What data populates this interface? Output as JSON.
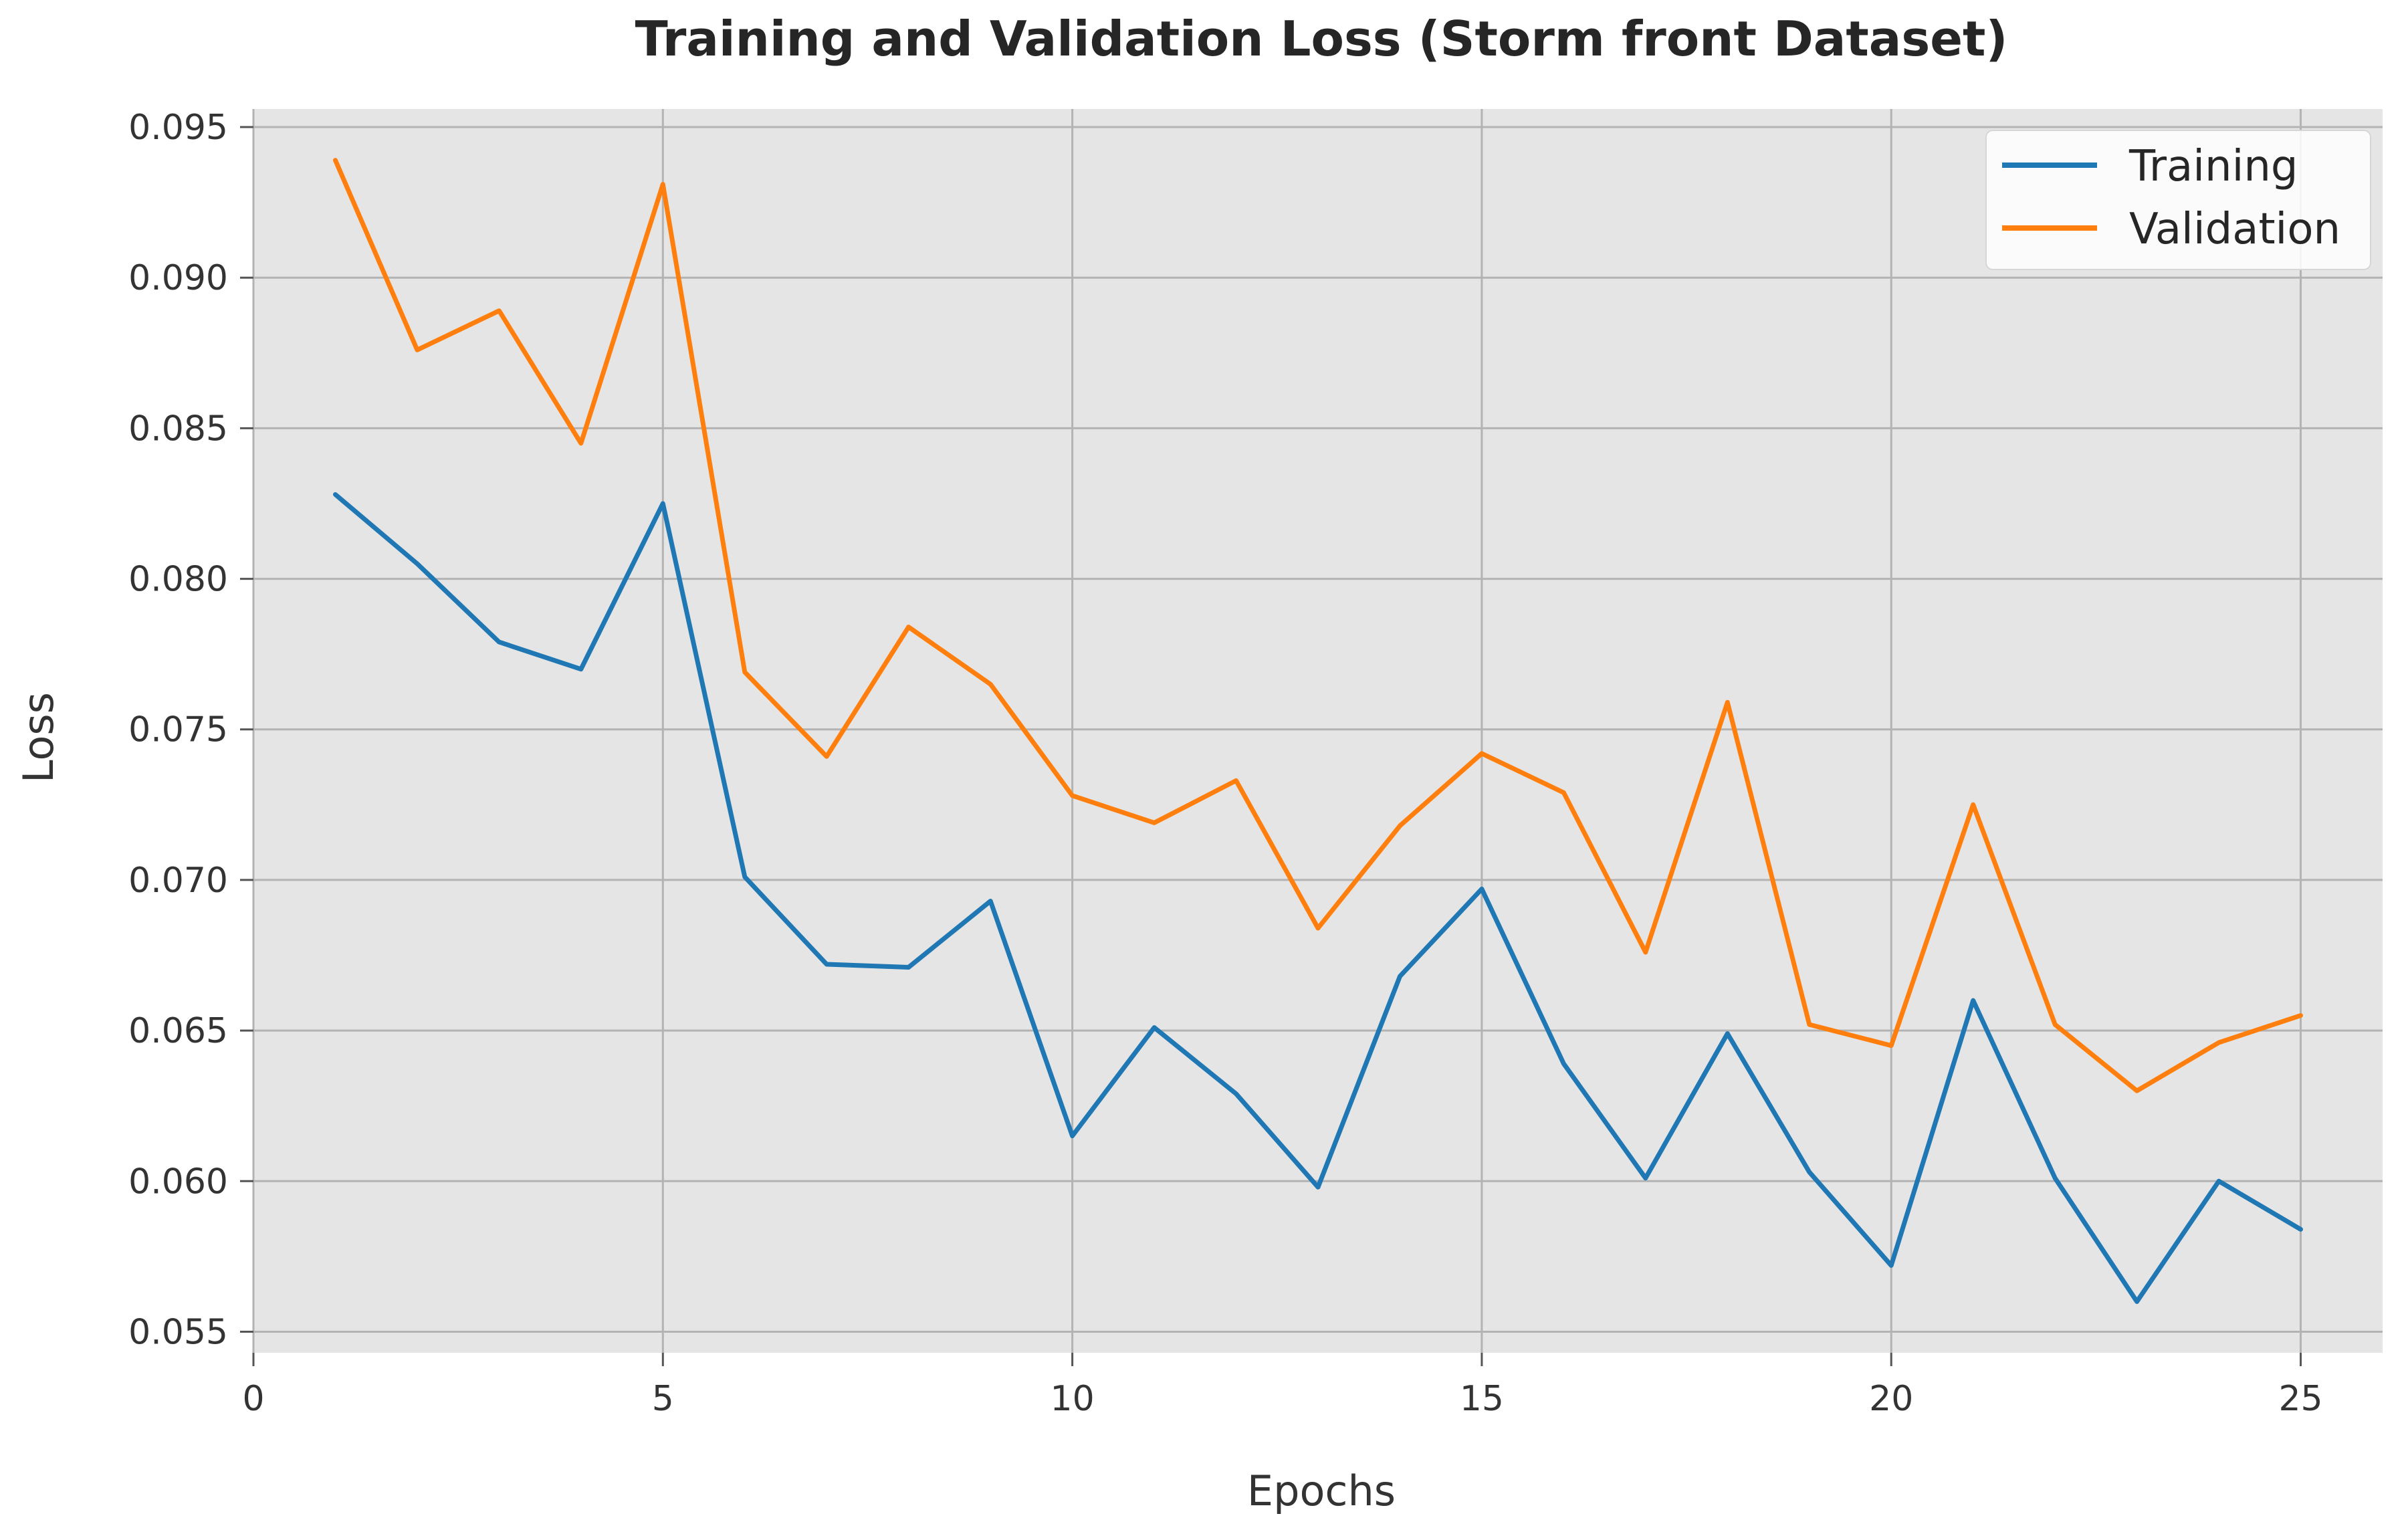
{
  "chart_data": {
    "type": "line",
    "title": "Training and Validation Loss (Storm front Dataset)",
    "xlabel": "Epochs",
    "ylabel": "Loss",
    "xlim": [
      0,
      26
    ],
    "ylim": [
      0.0543,
      0.0956
    ],
    "x_ticks": [
      0,
      5,
      10,
      15,
      20,
      25
    ],
    "x_tick_labels": [
      "0",
      "5",
      "10",
      "15",
      "20",
      "25"
    ],
    "y_ticks": [
      0.055,
      0.06,
      0.065,
      0.07,
      0.075,
      0.08,
      0.085,
      0.09,
      0.095
    ],
    "y_tick_labels": [
      "0.055",
      "0.060",
      "0.065",
      "0.070",
      "0.075",
      "0.080",
      "0.085",
      "0.090",
      "0.095"
    ],
    "grid": true,
    "legend_position": "top-right",
    "background_color": "#e5e5e5",
    "grid_color": "#b3b3b3",
    "x": [
      1,
      2,
      3,
      4,
      5,
      6,
      7,
      8,
      9,
      10,
      11,
      12,
      13,
      14,
      15,
      16,
      17,
      18,
      19,
      20,
      21,
      22,
      23,
      24,
      25
    ],
    "series": [
      {
        "name": "Training",
        "color": "#1f77b4",
        "values": [
          0.0828,
          0.0805,
          0.0779,
          0.077,
          0.0825,
          0.0701,
          0.0672,
          0.0671,
          0.0693,
          0.0615,
          0.0651,
          0.0629,
          0.0598,
          0.0668,
          0.0697,
          0.0639,
          0.0601,
          0.0649,
          0.0603,
          0.0572,
          0.066,
          0.0601,
          0.056,
          0.06,
          0.0584
        ]
      },
      {
        "name": "Validation",
        "color": "#ff7f0e",
        "values": [
          0.0939,
          0.0876,
          0.0889,
          0.0845,
          0.0931,
          0.0769,
          0.0741,
          0.0784,
          0.0765,
          0.0728,
          0.0719,
          0.0733,
          0.0684,
          0.0718,
          0.0742,
          0.0729,
          0.0676,
          0.0759,
          0.0652,
          0.0645,
          0.0725,
          0.0652,
          0.063,
          0.0646,
          0.0655
        ]
      }
    ]
  }
}
